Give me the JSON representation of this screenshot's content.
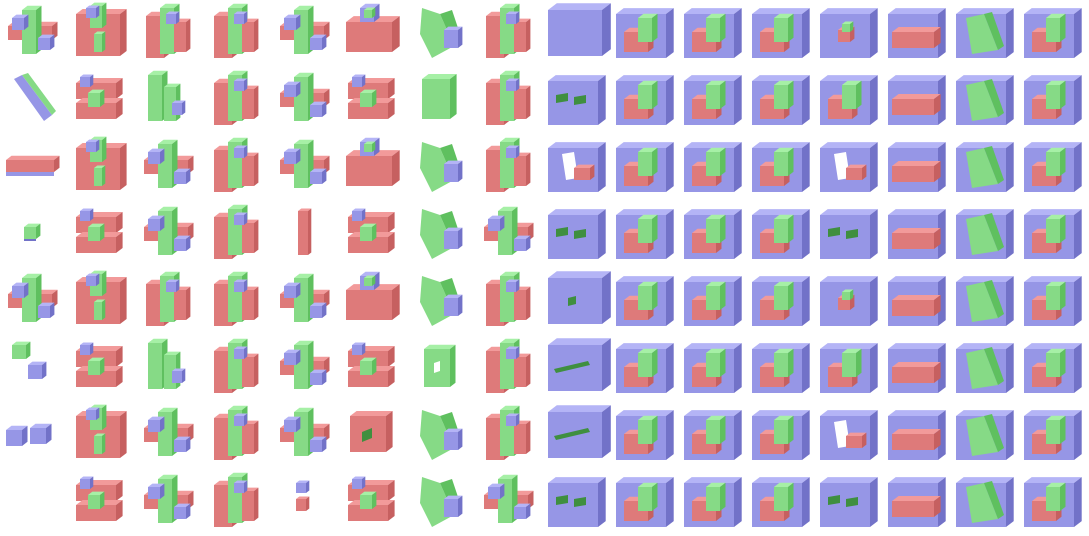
{
  "colors": {
    "red": [
      "#f29a9a",
      "#de7a7a",
      "#c66060"
    ],
    "green": [
      "#a6f0a6",
      "#86da86",
      "#5fc05f"
    ],
    "blue": [
      "#b4b4f6",
      "#9696e6",
      "#7272c8"
    ],
    "hole": "#3f8f3f",
    "background": "#ffffff"
  },
  "grid": {
    "columns": 16,
    "rows": 8
  },
  "rows": [
    [
      "cross-pieces",
      "frame",
      "tall-blocks",
      "tall-blocks",
      "cross-pieces",
      "slab",
      "tilted-green",
      "tall-blocks",
      "box-empty",
      "box",
      "box",
      "box",
      "box-small",
      "box-slab",
      "box-wedge",
      "box"
    ],
    [
      "diagonal-bar",
      "stacked",
      "zigzag",
      "tall-blocks",
      "cross-pieces",
      "stacked",
      "green-plate",
      "tall-blocks",
      "box-holes",
      "box",
      "box",
      "box",
      "box",
      "box-slab",
      "box-wedge",
      "box"
    ],
    [
      "flat-bar",
      "frame",
      "cross-pieces",
      "tall-blocks",
      "cross-pieces",
      "slab",
      "tilted-green",
      "tall-blocks",
      "box-notch",
      "box",
      "box",
      "box",
      "box-notch",
      "box-slab",
      "box-wedge",
      "box"
    ],
    [
      "small-cube",
      "stacked",
      "cross-pieces",
      "tall-blocks",
      "thin-bar",
      "stacked",
      "tilted-green",
      "cross-pieces",
      "box-holes",
      "box",
      "box",
      "box",
      "box-holes",
      "box-slab",
      "box-wedge",
      "box"
    ],
    [
      "cross-pieces",
      "frame",
      "tall-blocks",
      "tall-blocks",
      "cross-pieces",
      "slab",
      "tilted-green",
      "tall-blocks",
      "box-hole",
      "box",
      "box",
      "box",
      "box-small",
      "box-slab",
      "box-wedge",
      "box"
    ],
    [
      "two-cubes-diagonal",
      "stacked",
      "zigzag",
      "tall-blocks",
      "cross-pieces",
      "stacked",
      "ring",
      "tall-blocks",
      "box-slot",
      "box",
      "box",
      "box",
      "box",
      "box-slab",
      "box-wedge",
      "box"
    ],
    [
      "two-cubes",
      "frame",
      "cross-pieces",
      "tall-blocks",
      "cross-pieces",
      "ring-red",
      "tilted-green",
      "tall-blocks",
      "box-slot",
      "box",
      "box",
      "box",
      "box-notch",
      "box-slab",
      "box-wedge",
      "box"
    ],
    [
      "",
      "stacked",
      "cross-pieces",
      "tall-blocks",
      "small-stack",
      "stacked",
      "tilted-green",
      "cross-pieces",
      "box-holes",
      "box",
      "box",
      "box",
      "box-holes",
      "box-slab",
      "box-wedge",
      "box"
    ]
  ]
}
